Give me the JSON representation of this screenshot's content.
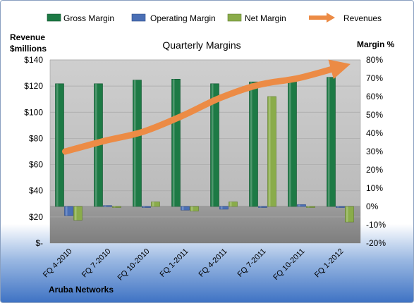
{
  "chart_data": {
    "type": "bar",
    "title": "Quarterly Margins",
    "company": "Aruba Networks",
    "left_axis_label": [
      "Revenue",
      "$millions"
    ],
    "right_axis_label": "Margin %",
    "categories": [
      "FQ 4-2010",
      "FQ 7-2010",
      "FQ 10-2010",
      "FQ 1-2011",
      "FQ 4-2011",
      "FQ 7-2011",
      "FQ 10-2011",
      "FQ 1-2012"
    ],
    "left_axis": {
      "min": 0,
      "max": 140,
      "step": 20,
      "tick_labels": [
        "$-",
        "$20",
        "$40",
        "$60",
        "$80",
        "$100",
        "$120",
        "$140"
      ]
    },
    "right_axis": {
      "min": -20,
      "max": 80,
      "step": 10,
      "tick_labels": [
        "-20%",
        "-10%",
        "0%",
        "10%",
        "20%",
        "30%",
        "40%",
        "50%",
        "60%",
        "70%",
        "80%"
      ]
    },
    "grid": true,
    "legend_position": "top",
    "series": [
      {
        "name": "Gross Margin",
        "kind": "bar",
        "axis": "right",
        "color": "#1d7a45",
        "values": [
          67,
          67,
          69,
          69.5,
          67,
          68,
          68.5,
          70.5
        ]
      },
      {
        "name": "Operating Margin",
        "kind": "bar",
        "axis": "right",
        "color": "#4a6fb5",
        "values": [
          -5,
          0.5,
          0,
          -2,
          -1.5,
          -0.5,
          1,
          -0.5
        ]
      },
      {
        "name": "Net Margin",
        "kind": "bar",
        "axis": "right",
        "color": "#8aac4a",
        "values": [
          -7.5,
          -0.5,
          2.5,
          -2.5,
          2.5,
          60,
          -0.5,
          -8.5
        ]
      },
      {
        "name": "Revenues",
        "kind": "line",
        "axis": "left",
        "color": "#ec8b45",
        "values": [
          70,
          78,
          85,
          97,
          111,
          121,
          126,
          134
        ]
      }
    ]
  }
}
